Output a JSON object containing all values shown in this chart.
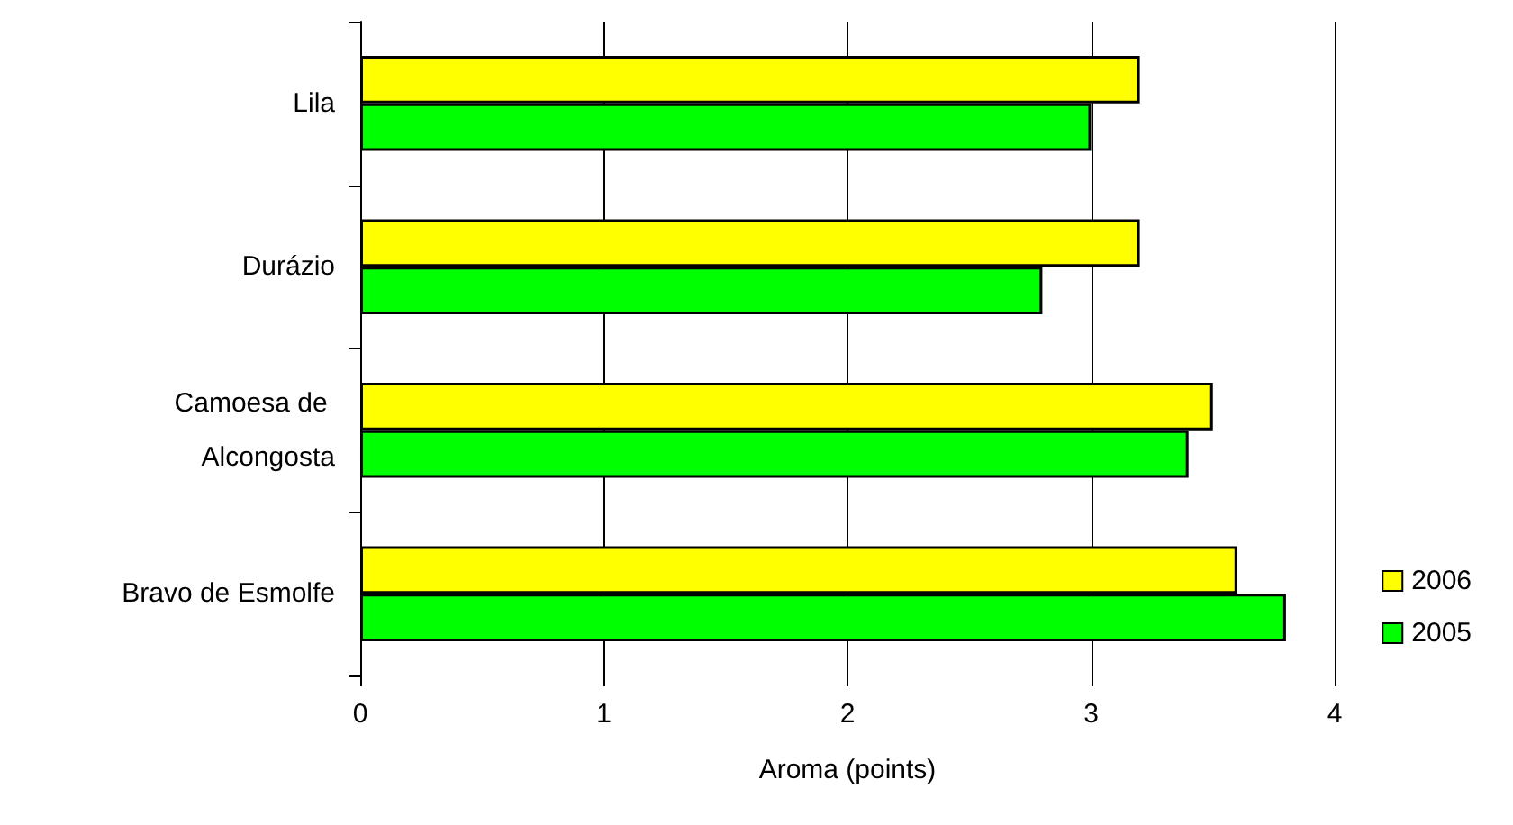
{
  "chart_data": {
    "type": "bar",
    "orientation": "horizontal",
    "xlabel": "Aroma (points)",
    "categories": [
      "Lila",
      "Durázio",
      "Camoesa de Alcongosta",
      "Bravo de Esmolfe"
    ],
    "series": [
      {
        "name": "2006",
        "color": "#ffff00",
        "values": [
          3.2,
          3.2,
          3.5,
          3.6
        ]
      },
      {
        "name": "2005",
        "color": "#00ff00",
        "values": [
          3.0,
          2.8,
          3.4,
          3.8
        ]
      }
    ],
    "xlim": [
      0,
      4
    ],
    "xticks": [
      0,
      1,
      2,
      3,
      4
    ],
    "grid": "x",
    "legend": "right"
  }
}
